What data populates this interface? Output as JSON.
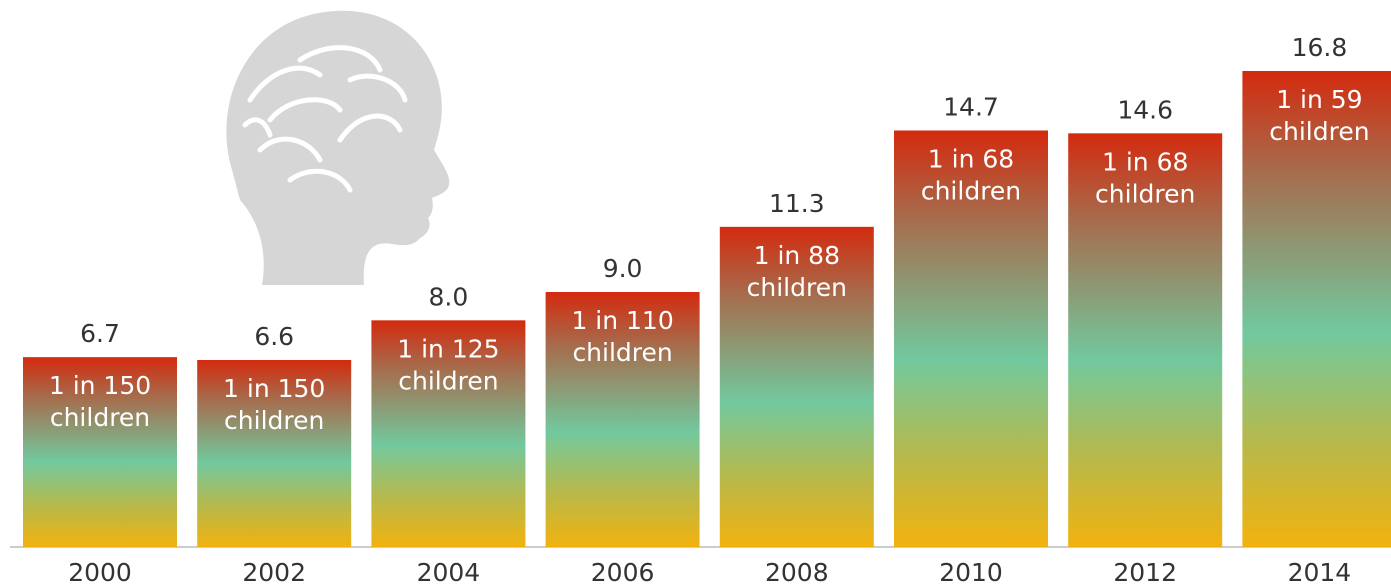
{
  "chart_data": {
    "type": "bar",
    "categories": [
      "2000",
      "2002",
      "2004",
      "2006",
      "2008",
      "2010",
      "2012",
      "2014"
    ],
    "values": [
      6.7,
      6.6,
      8.0,
      9.0,
      11.3,
      14.7,
      14.6,
      16.8
    ],
    "value_labels": [
      "6.7",
      "6.6",
      "8.0",
      "9.0",
      "11.3",
      "14.7",
      "14.6",
      "16.8"
    ],
    "bar_notes": [
      [
        "1 in 150",
        "children"
      ],
      [
        "1 in 150",
        "children"
      ],
      [
        "1 in 125",
        "children"
      ],
      [
        "1 in 110",
        "children"
      ],
      [
        "1 in 88",
        "children"
      ],
      [
        "1 in 68",
        "children"
      ],
      [
        "1 in 68",
        "children"
      ],
      [
        "1 in 59",
        "children"
      ]
    ],
    "colors": [
      "#d42a0e",
      "#a8694a",
      "#72c99e",
      "#b6b94c",
      "#f2b20e"
    ]
  }
}
